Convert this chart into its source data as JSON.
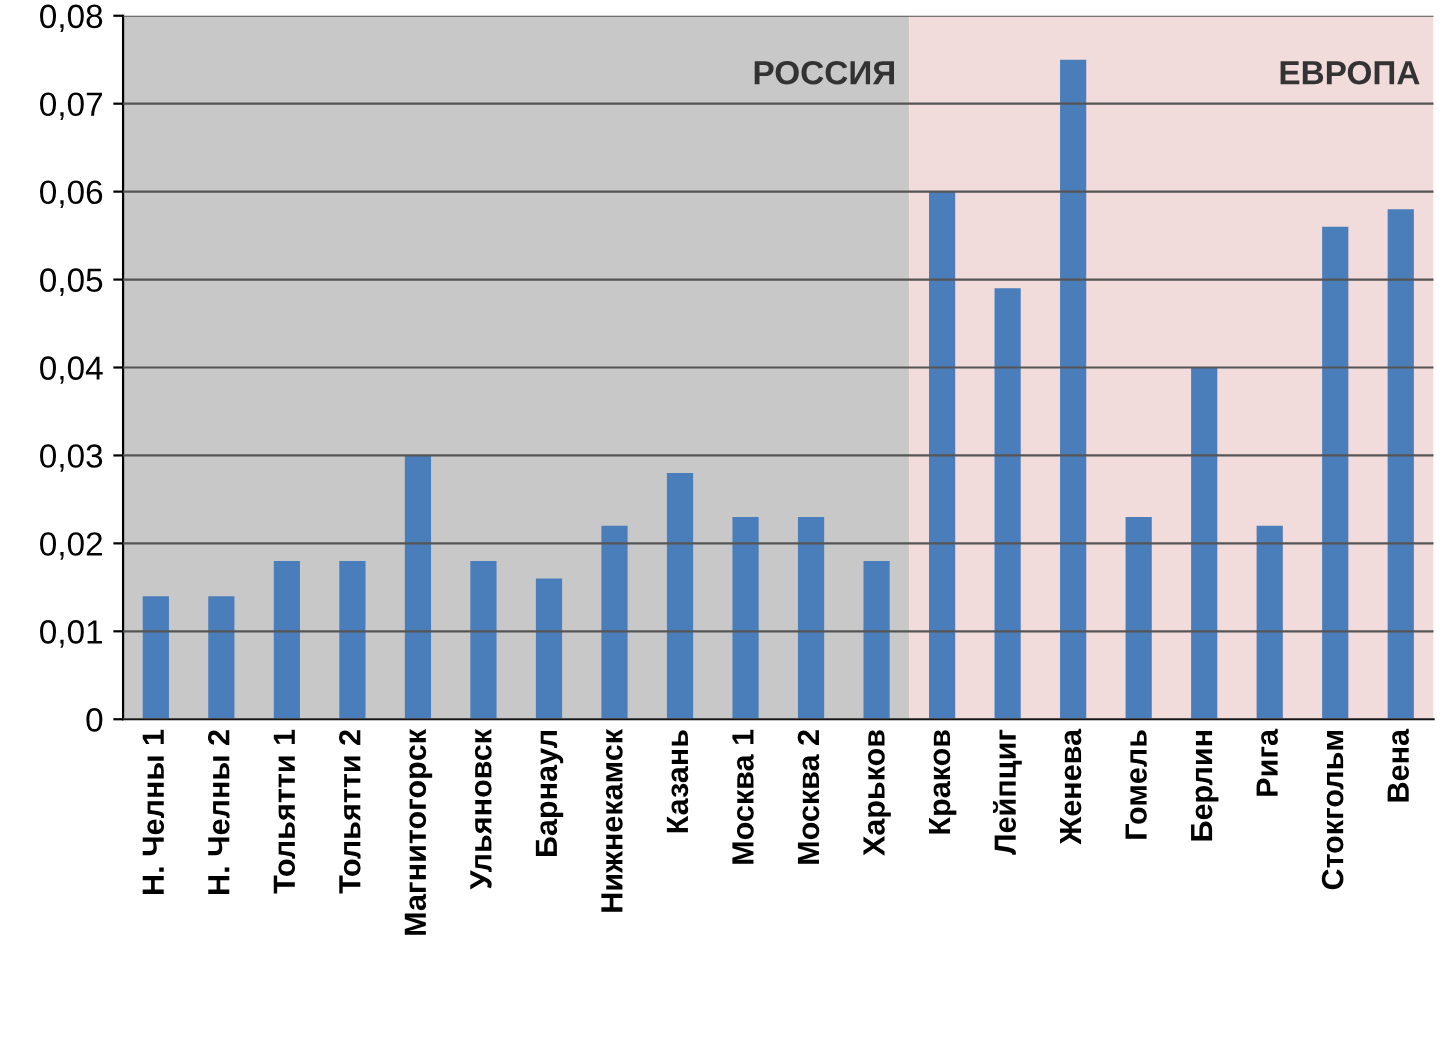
{
  "chart_data": {
    "type": "bar",
    "categories": [
      "Н. Челны 1",
      "Н. Челны 2",
      "Тольятти 1",
      "Тольятти 2",
      "Магнитогорск",
      "Ульяновск",
      "Барнаул",
      "Нижнекамск",
      "Казань",
      "Москва 1",
      "Москва 2",
      "Харьков",
      "Краков",
      "Лейпциг",
      "Женева",
      "Гомель",
      "Берлин",
      "Рига",
      "Стокгольм",
      "Вена"
    ],
    "values": [
      0.014,
      0.014,
      0.018,
      0.018,
      0.03,
      0.018,
      0.016,
      0.022,
      0.028,
      0.023,
      0.023,
      0.018,
      0.06,
      0.049,
      0.075,
      0.023,
      0.04,
      0.022,
      0.056,
      0.058
    ],
    "color": "#4a7ebb",
    "ylim": [
      0,
      0.08
    ],
    "yticks": [
      {
        "value": 0,
        "label": "0"
      },
      {
        "value": 0.01,
        "label": "0,01"
      },
      {
        "value": 0.02,
        "label": "0,02"
      },
      {
        "value": 0.03,
        "label": "0,03"
      },
      {
        "value": 0.04,
        "label": "0,04"
      },
      {
        "value": 0.05,
        "label": "0,05"
      },
      {
        "value": 0.06,
        "label": "0,06"
      },
      {
        "value": 0.07,
        "label": "0,07"
      },
      {
        "value": 0.08,
        "label": "0,08"
      }
    ],
    "grid": "y",
    "bands": [
      {
        "axis": "x",
        "from": "Н. Челны 1",
        "to": "Харьков",
        "label": "РОССИЯ",
        "color": "#c8c8c8"
      },
      {
        "axis": "x",
        "from": "Краков",
        "to": "Вена",
        "label": "ЕВРОПА",
        "color": "#f2dcdb"
      }
    ]
  }
}
